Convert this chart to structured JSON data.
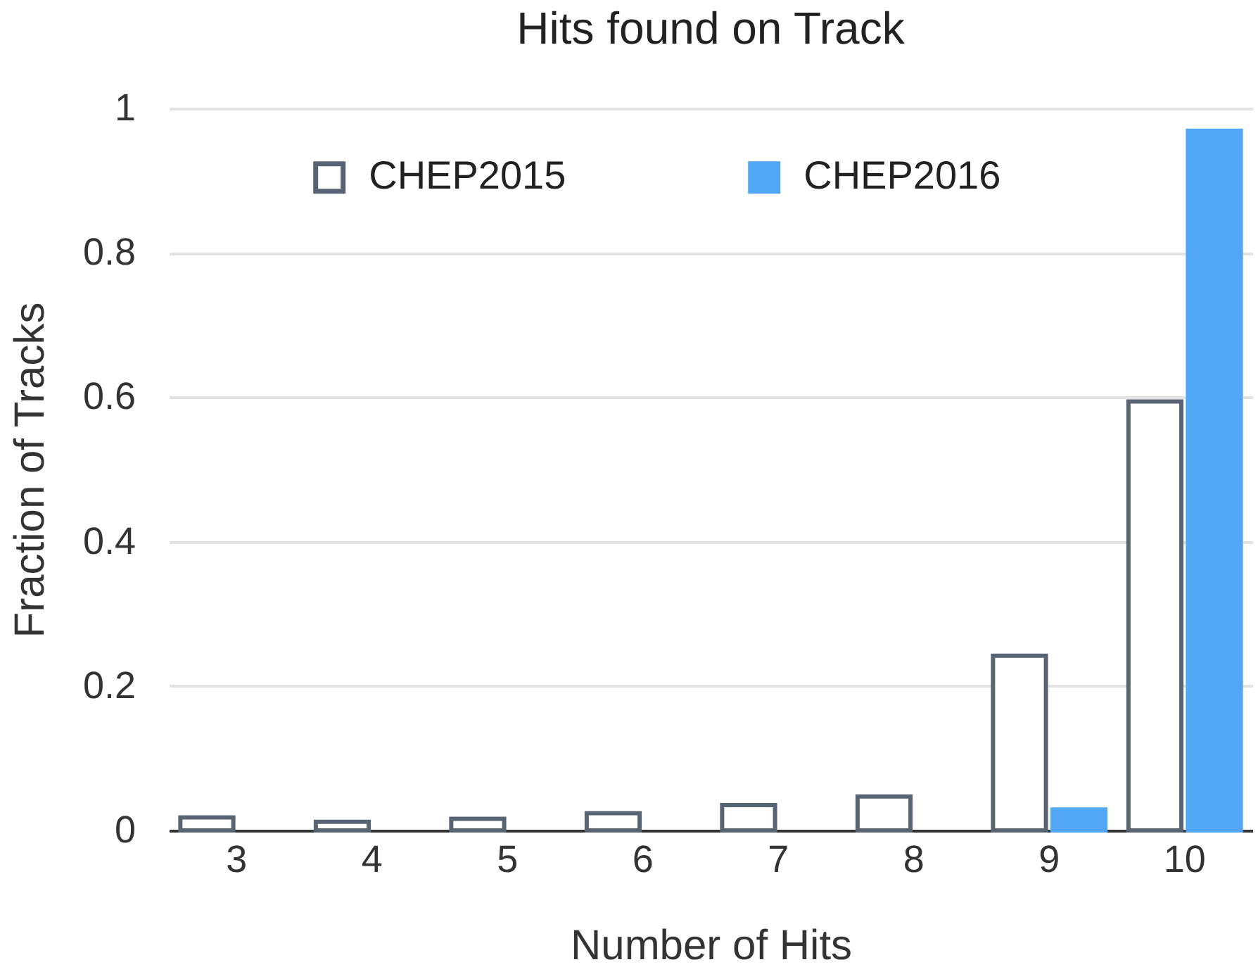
{
  "chart_data": {
    "type": "bar",
    "title": "Hits found on Track",
    "xlabel": "Number of Hits",
    "ylabel": "Fraction of Tracks",
    "categories": [
      "3",
      "4",
      "5",
      "6",
      "7",
      "8",
      "9",
      "10"
    ],
    "series": [
      {
        "name": "CHEP2015",
        "color": "#586474",
        "values": [
          0.018,
          0.012,
          0.016,
          0.024,
          0.035,
          0.047,
          0.242,
          0.594
        ]
      },
      {
        "name": "CHEP2016",
        "color": "#52a7f4",
        "values": [
          null,
          null,
          null,
          null,
          null,
          null,
          0.029,
          0.969
        ]
      }
    ],
    "ylim": [
      0,
      1
    ],
    "yticks": [
      0,
      0.2,
      0.4,
      0.6,
      0.8,
      1
    ],
    "grid": "y",
    "legend": "top"
  }
}
